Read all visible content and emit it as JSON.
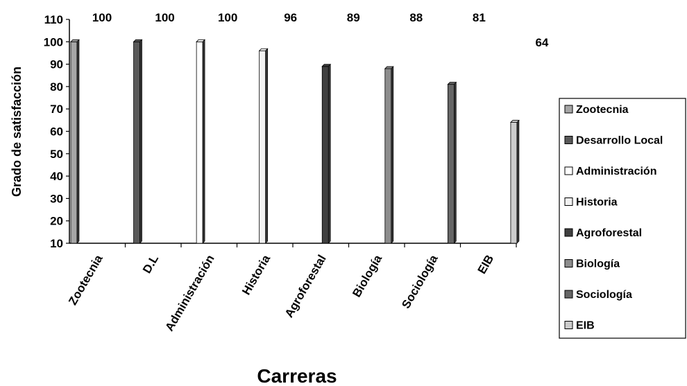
{
  "chart_data": {
    "type": "bar",
    "categories": [
      "Zootecnia",
      "D.L",
      "Administración",
      "Historia",
      "Agroforestal",
      "Biología",
      "Sociología",
      "EIB"
    ],
    "values": [
      100,
      100,
      100,
      96,
      89,
      88,
      81,
      64
    ],
    "data_labels": [
      "100",
      "100",
      "100",
      "96",
      "89",
      "88",
      "81",
      "64"
    ],
    "ylabel": "Grado de satisfacción",
    "xlabel": "Carreras",
    "ylim": [
      10,
      110
    ],
    "yticks": [
      10,
      20,
      30,
      40,
      50,
      60,
      70,
      80,
      90,
      100,
      110
    ],
    "grid": false,
    "legend_position": "right",
    "series": [
      {
        "name": "Zootecnia",
        "value": 100,
        "color": "#a6a6a6"
      },
      {
        "name": "Desarrollo Local",
        "value": 100,
        "color": "#595959"
      },
      {
        "name": "Administración",
        "value": 100,
        "color": "#ffffff"
      },
      {
        "name": "Historia",
        "value": 96,
        "color": "#f2f2f2"
      },
      {
        "name": "Agroforestal",
        "value": 89,
        "color": "#404040"
      },
      {
        "name": "Biología",
        "value": 88,
        "color": "#8c8c8c"
      },
      {
        "name": "Sociología",
        "value": 81,
        "color": "#666666"
      },
      {
        "name": "EIB",
        "value": 64,
        "color": "#cccccc"
      }
    ],
    "legend_labels": [
      "Zootecnia",
      "Desarrollo Local",
      "Administración",
      "Historia",
      "Agroforestal",
      "Biología",
      "Sociología",
      "EIB"
    ]
  }
}
